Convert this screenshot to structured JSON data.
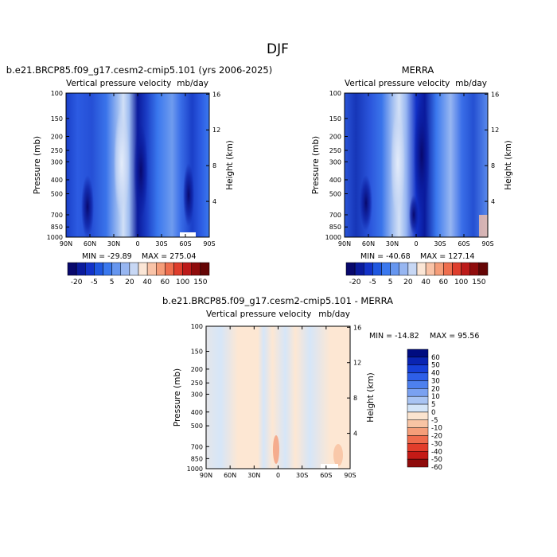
{
  "page": {
    "title": "DJF"
  },
  "colors": {
    "cb12": [
      "#08086c",
      "#0a1a9c",
      "#1232c8",
      "#1f57e0",
      "#3a78ee",
      "#6696ef",
      "#97b6f1",
      "#c7d7f4",
      "#fbe6d6",
      "#f9c3a7",
      "#f59d79",
      "#ee6e4e",
      "#de3d2c",
      "#bc1a19",
      "#8f0b0b",
      "#650505"
    ],
    "diff": [
      "#000c80",
      "#0a24b2",
      "#1740d8",
      "#2e5fe8",
      "#4d80ee",
      "#7aa1f1",
      "#a9c4f3",
      "#d4e5f8",
      "#fbe4cf",
      "#f8c4a4",
      "#f59e79",
      "#ef6b4c",
      "#e23d2b",
      "#c41a16",
      "#8f0b0b"
    ]
  },
  "chart_data": [
    {
      "type": "heatmap",
      "title": "b.e21.BRCP85.f09_g17.cesm2-cmip5.101 (yrs 2006-2025)",
      "subtitle": "Vertical pressure velocity",
      "units": "mb/day",
      "xlabel": "",
      "ylabel": "Pressure (mb)",
      "ylabel_right": "Height (km)",
      "x_ticks": [
        "90N",
        "60N",
        "30N",
        "0",
        "30S",
        "60S",
        "90S"
      ],
      "y_ticks": [
        "100",
        "150",
        "200",
        "250",
        "300",
        "400",
        "500",
        "700",
        "850",
        "1000"
      ],
      "y_right_ticks": [
        "16",
        "12",
        "8",
        "4"
      ],
      "min_text": "MIN = -29.89",
      "max_text": "MAX = 275.04",
      "colorbar_labels": [
        "-20",
        "-5",
        "5",
        "20",
        "40",
        "60",
        "100",
        "150"
      ]
    },
    {
      "type": "heatmap",
      "title": "MERRA",
      "subtitle": "Vertical pressure velocity",
      "units": "mb/day",
      "xlabel": "",
      "ylabel": "Pressure (mb)",
      "ylabel_right": "Height (km)",
      "x_ticks": [
        "90N",
        "60N",
        "30N",
        "0",
        "30S",
        "60S",
        "90S"
      ],
      "y_ticks": [
        "100",
        "150",
        "200",
        "250",
        "300",
        "400",
        "500",
        "700",
        "850",
        "1000"
      ],
      "y_right_ticks": [
        "16",
        "12",
        "8",
        "4"
      ],
      "min_text": "MIN = -40.68",
      "max_text": "MAX = 127.14",
      "colorbar_labels": [
        "-20",
        "-5",
        "5",
        "20",
        "40",
        "60",
        "100",
        "150"
      ]
    },
    {
      "type": "heatmap",
      "title": "b.e21.BRCP85.f09_g17.cesm2-cmip5.101 - MERRA",
      "subtitle": "Vertical pressure velocity",
      "units": "mb/day",
      "xlabel": "",
      "ylabel": "Pressure (mb)",
      "ylabel_right": "Height (km)",
      "x_ticks": [
        "90N",
        "60N",
        "30N",
        "0",
        "30S",
        "60S",
        "90S"
      ],
      "y_ticks": [
        "100",
        "150",
        "200",
        "250",
        "300",
        "400",
        "500",
        "700",
        "850",
        "1000"
      ],
      "y_right_ticks": [
        "16",
        "12",
        "8",
        "4"
      ],
      "min_text": "MIN = -14.82",
      "max_text": "MAX = 95.56",
      "colorbar_labels": [
        "60",
        "50",
        "40",
        "30",
        "20",
        "10",
        "5",
        "0",
        "-5",
        "-10",
        "-20",
        "-30",
        "-40",
        "-50",
        "-60"
      ]
    }
  ]
}
